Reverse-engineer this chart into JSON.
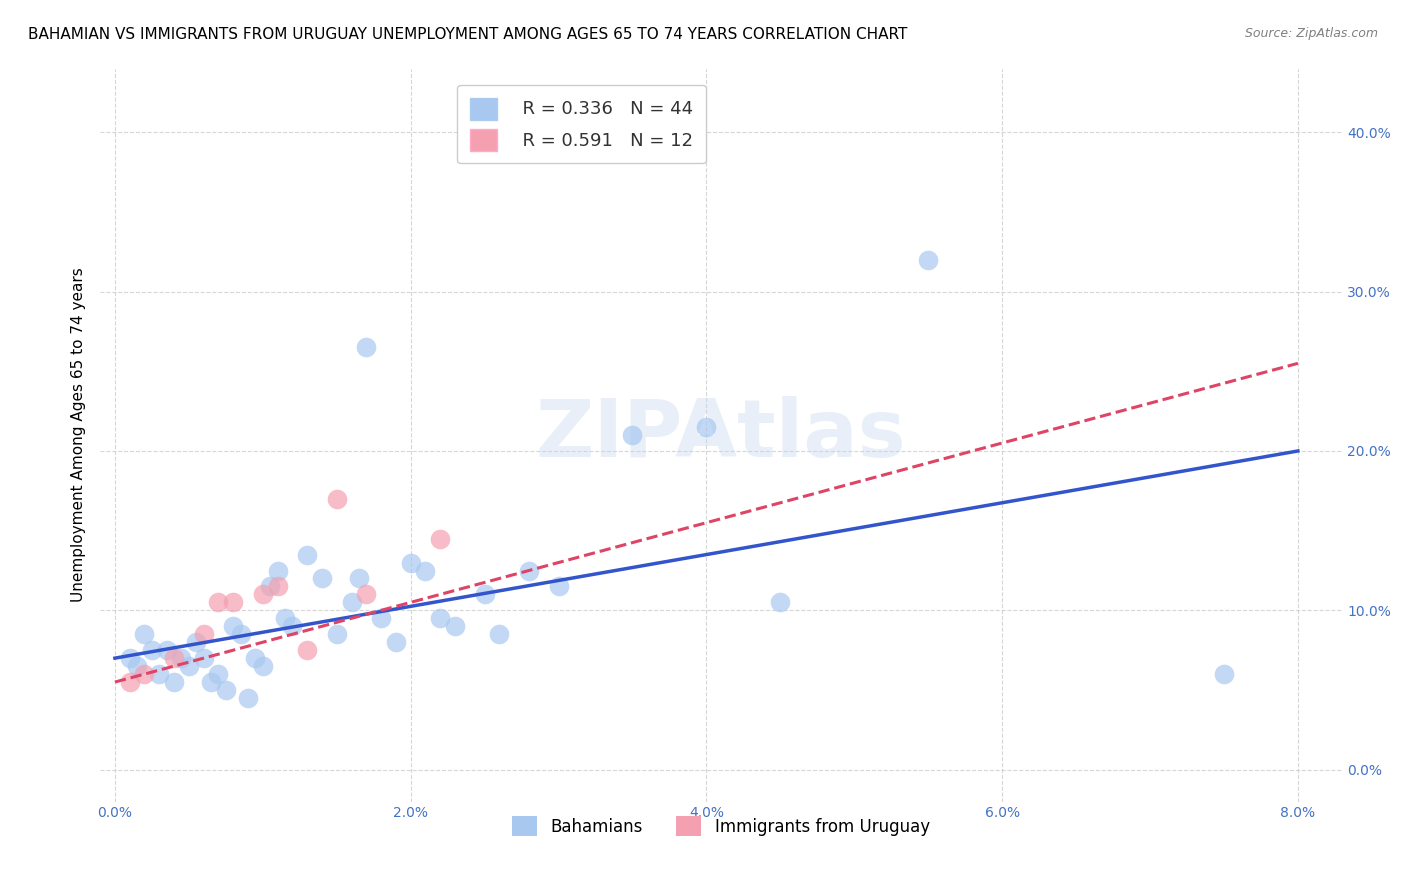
{
  "title": "BAHAMIAN VS IMMIGRANTS FROM URUGUAY UNEMPLOYMENT AMONG AGES 65 TO 74 YEARS CORRELATION CHART",
  "source": "Source: ZipAtlas.com",
  "xlabel_vals": [
    0.0,
    2.0,
    4.0,
    6.0,
    8.0
  ],
  "ylabel_vals": [
    0.0,
    10.0,
    20.0,
    30.0,
    40.0
  ],
  "xlim": [
    -0.1,
    8.3
  ],
  "ylim": [
    -2.0,
    44.0
  ],
  "ylabel_label": "Unemployment Among Ages 65 to 74 years",
  "legend_label1": "Bahamians",
  "legend_label2": "Immigrants from Uruguay",
  "legend_r1": "R = 0.336",
  "legend_n1": "N = 44",
  "legend_r2": "R = 0.591",
  "legend_n2": "N = 12",
  "color_blue": "#A8C8F0",
  "color_pink": "#F4A0B0",
  "line_blue": "#3355CC",
  "line_pink": "#DD4466",
  "bahamians_x": [
    0.1,
    0.15,
    0.2,
    0.25,
    0.3,
    0.35,
    0.4,
    0.45,
    0.5,
    0.55,
    0.6,
    0.65,
    0.7,
    0.75,
    0.8,
    0.85,
    0.9,
    0.95,
    1.0,
    1.05,
    1.1,
    1.15,
    1.2,
    1.3,
    1.4,
    1.5,
    1.6,
    1.65,
    1.7,
    1.8,
    1.9,
    2.0,
    2.1,
    2.2,
    2.3,
    2.5,
    2.6,
    2.8,
    3.0,
    3.5,
    4.0,
    4.5,
    5.5,
    7.5
  ],
  "bahamians_y": [
    7.0,
    6.5,
    8.5,
    7.5,
    6.0,
    7.5,
    5.5,
    7.0,
    6.5,
    8.0,
    7.0,
    5.5,
    6.0,
    5.0,
    9.0,
    8.5,
    4.5,
    7.0,
    6.5,
    11.5,
    12.5,
    9.5,
    9.0,
    13.5,
    12.0,
    8.5,
    10.5,
    12.0,
    26.5,
    9.5,
    8.0,
    13.0,
    12.5,
    9.5,
    9.0,
    11.0,
    8.5,
    12.5,
    11.5,
    21.0,
    21.5,
    10.5,
    32.0,
    6.0
  ],
  "uruguay_x": [
    0.1,
    0.2,
    0.4,
    0.6,
    0.7,
    0.8,
    1.0,
    1.1,
    1.3,
    1.5,
    1.7,
    2.2
  ],
  "uruguay_y": [
    5.5,
    6.0,
    7.0,
    8.5,
    10.5,
    10.5,
    11.0,
    11.5,
    7.5,
    17.0,
    11.0,
    14.5
  ],
  "blue_line_x": [
    0.0,
    8.0
  ],
  "blue_line_y": [
    7.0,
    20.0
  ],
  "pink_line_x": [
    0.0,
    8.0
  ],
  "pink_line_y": [
    5.5,
    25.5
  ],
  "watermark_text": "ZIPAtlas",
  "title_fontsize": 11,
  "axis_label_fontsize": 11,
  "tick_fontsize": 10,
  "tick_color": "#4472C4",
  "legend_fontsize": 12,
  "source_fontsize": 9
}
